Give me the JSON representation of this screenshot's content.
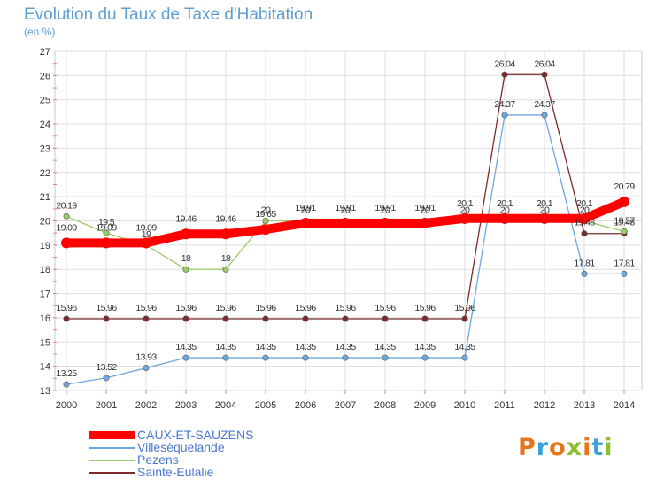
{
  "title": "Evolution du Taux de Taxe d'Habitation",
  "unit": "(en %)",
  "logo": {
    "text": "Proxiti",
    "colors": [
      "#e8741b",
      "#3aa0d8",
      "#e8741b",
      "#8ebf2e",
      "#e8741b",
      "#3aa0d8",
      "#8ebf2e"
    ]
  },
  "chart_data": {
    "type": "line",
    "title": "Evolution du Taux de Taxe d'Habitation",
    "ylabel": "(en %)",
    "x": [
      "2000",
      "2001",
      "2002",
      "2003",
      "2004",
      "2005",
      "2006",
      "2007",
      "2008",
      "2009",
      "2010",
      "2011",
      "2012",
      "2013",
      "2014"
    ],
    "ylim": [
      13,
      27
    ],
    "yticks": [
      "13",
      "14",
      "15",
      "16",
      "17",
      "18",
      "19",
      "20",
      "21",
      "22",
      "23",
      "24",
      "25",
      "26",
      "27"
    ],
    "grid": true,
    "legend_position": "bottom-left",
    "series": [
      {
        "name": "CAUX-ET-SAUZENS",
        "color": "#ff0000",
        "values": [
          19.09,
          19.09,
          19.09,
          19.46,
          19.46,
          19.65,
          19.91,
          19.91,
          19.91,
          19.91,
          20.1,
          20.1,
          20.1,
          20.1,
          20.79
        ],
        "labels": [
          "19.09",
          "19.09",
          "19.09",
          "19.46",
          "19.46",
          "19.65",
          "19.91",
          "19.91",
          "19.91",
          "19.91",
          "20.1",
          "20.1",
          "20.1",
          "20.1",
          "20.79"
        ]
      },
      {
        "name": "Villesèquelande",
        "color": "#6fa8dc",
        "values": [
          13.25,
          13.52,
          13.93,
          14.35,
          14.35,
          14.35,
          14.35,
          14.35,
          14.35,
          14.35,
          14.35,
          24.37,
          24.37,
          17.81,
          17.81
        ],
        "labels": [
          "13.25",
          "13.52",
          "13.93",
          "14.35",
          "14.35",
          "14.35",
          "14.35",
          "14.35",
          "14.35",
          "14.35",
          "14.35",
          "24.37",
          "24.37",
          "17.81",
          "17.81"
        ]
      },
      {
        "name": "Pezens",
        "color": "#99cc66",
        "values": [
          20.19,
          19.5,
          19,
          18,
          18,
          20,
          20,
          20,
          20,
          20,
          20,
          20,
          20,
          20,
          19.57
        ],
        "labels": [
          "20.19",
          "19.5",
          "19",
          "18",
          "18",
          "20",
          "20",
          "20",
          "20",
          "20",
          "20",
          "20",
          "20",
          "20",
          "19.57"
        ]
      },
      {
        "name": "Sainte-Eulalie",
        "color": "#7b2b2b",
        "values": [
          15.96,
          15.96,
          15.96,
          15.96,
          15.96,
          15.96,
          15.96,
          15.96,
          15.96,
          15.96,
          15.96,
          26.04,
          26.04,
          19.48,
          19.48
        ],
        "labels": [
          "15.96",
          "15.96",
          "15.96",
          "15.96",
          "15.96",
          "15.96",
          "15.96",
          "15.96",
          "15.96",
          "15.96",
          "15.96",
          "26.04",
          "26.04",
          "19.48",
          "19.48"
        ]
      }
    ]
  }
}
